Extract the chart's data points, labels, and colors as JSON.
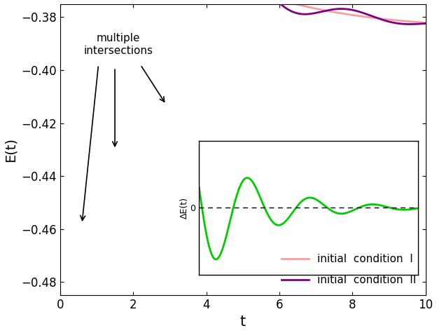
{
  "xlabel": "t",
  "ylabel": "E(t)",
  "xlim": [
    0,
    10
  ],
  "ylim": [
    -0.485,
    -0.375
  ],
  "yticks": [
    -0.48,
    -0.46,
    -0.44,
    -0.42,
    -0.4,
    -0.38
  ],
  "xticks": [
    0,
    2,
    4,
    6,
    8,
    10
  ],
  "color_I": "#f4a0a0",
  "color_II": "#800080",
  "color_inset_line": "#00cc00",
  "legend_label_I": "initial  condition  I",
  "legend_label_II": "initial  condition  II",
  "inset_ylabel": "ΔE(t)",
  "annotation_text": "multiple\nintersections"
}
